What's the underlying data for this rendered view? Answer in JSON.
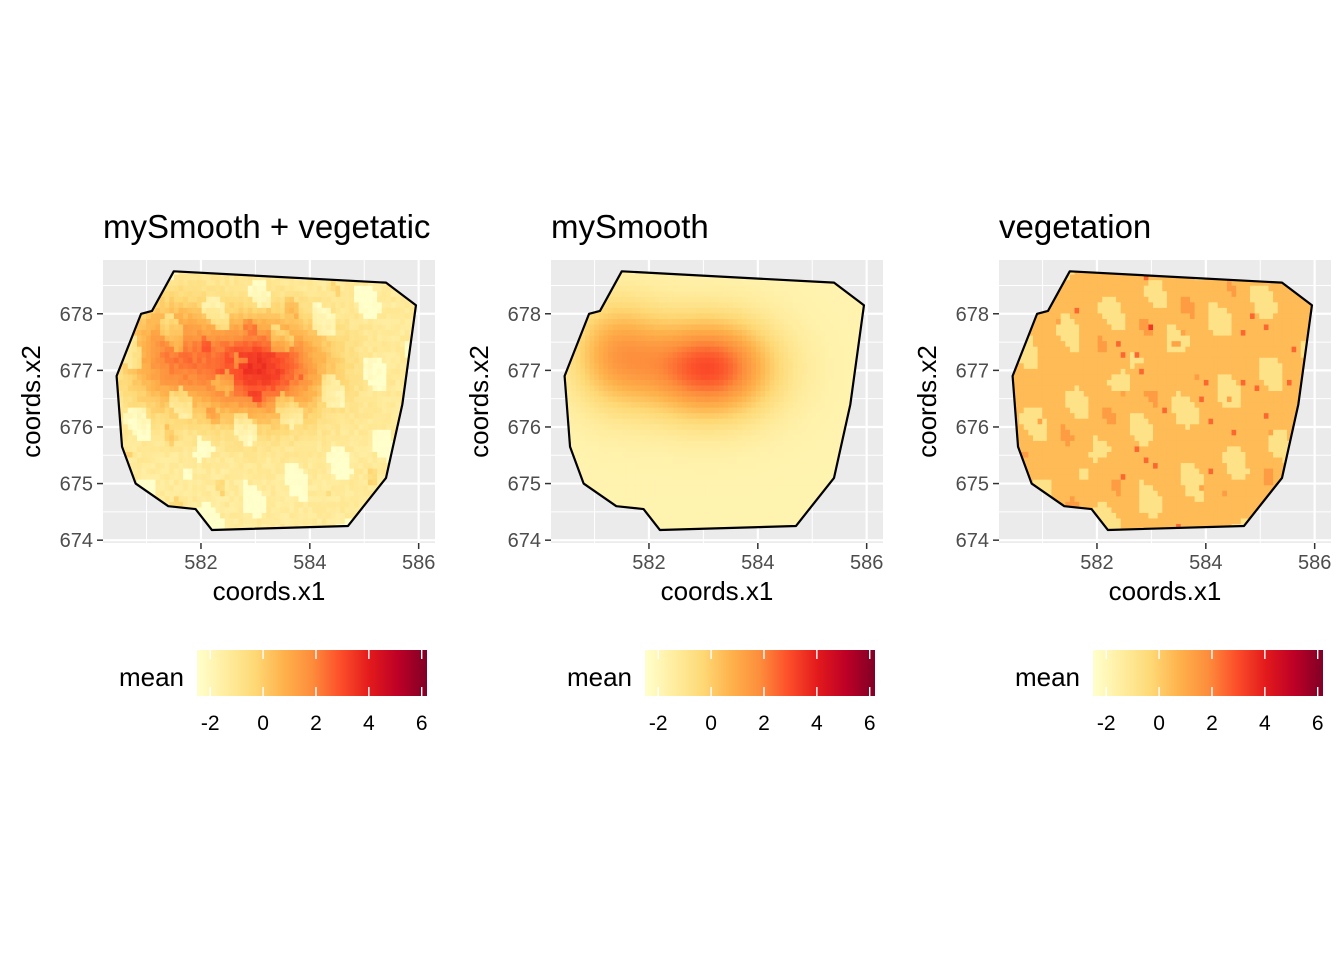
{
  "chart_data": [
    {
      "type": "heatmap",
      "title": "mySmooth + vegetatic",
      "xlabel": "coords.x1",
      "ylabel": "coords.x2",
      "xticks": [
        "582",
        "584",
        "586"
      ],
      "yticks": [
        "674",
        "675",
        "676",
        "677",
        "678"
      ],
      "xlim": [
        580.2,
        586.3
      ],
      "ylim": [
        673.95,
        678.95
      ],
      "grid": true,
      "fill_description": "smooth spatial field plus patchy vegetation effect",
      "legend": {
        "title": "mean",
        "ticks": [
          "-2",
          "0",
          "2",
          "4",
          "6"
        ],
        "range": [
          -2.5,
          6.2
        ],
        "position": "bottom"
      }
    },
    {
      "type": "heatmap",
      "title": "mySmooth",
      "xlabel": "coords.x1",
      "ylabel": "coords.x2",
      "xticks": [
        "582",
        "584",
        "586"
      ],
      "yticks": [
        "674",
        "675",
        "676",
        "677",
        "678"
      ],
      "xlim": [
        580.2,
        586.3
      ],
      "ylim": [
        673.95,
        678.95
      ],
      "grid": true,
      "fill_description": "smooth spatial field",
      "legend": {
        "title": "mean",
        "ticks": [
          "-2",
          "0",
          "2",
          "4",
          "6"
        ],
        "range": [
          -2.5,
          6.2
        ],
        "position": "bottom"
      }
    },
    {
      "type": "heatmap",
      "title": "vegetation",
      "xlabel": "coords.x1",
      "ylabel": "coords.x2",
      "xticks": [
        "582",
        "584",
        "586"
      ],
      "yticks": [
        "674",
        "675",
        "676",
        "677",
        "678"
      ],
      "xlim": [
        580.2,
        586.3
      ],
      "ylim": [
        673.95,
        678.95
      ],
      "grid": true,
      "fill_description": "vegetation effect, mostly near 0.5 with lighter patches",
      "legend": {
        "title": "mean",
        "ticks": [
          "-2",
          "0",
          "2",
          "4",
          "6"
        ],
        "range": [
          -2.5,
          6.2
        ],
        "position": "bottom"
      }
    }
  ],
  "boundary": [
    [
      581.5,
      678.75
    ],
    [
      585.4,
      678.55
    ],
    [
      585.95,
      678.15
    ],
    [
      585.7,
      676.4
    ],
    [
      585.4,
      675.1
    ],
    [
      584.7,
      674.25
    ],
    [
      582.2,
      674.18
    ],
    [
      581.9,
      674.55
    ],
    [
      581.4,
      674.6
    ],
    [
      580.8,
      675.0
    ],
    [
      580.55,
      675.65
    ],
    [
      580.45,
      676.9
    ],
    [
      580.9,
      678.0
    ],
    [
      581.1,
      678.05
    ]
  ],
  "colors": {
    "panel_bg": "#ebebeb",
    "grid": "#ffffff",
    "boundary": "#000000",
    "scale": [
      "#ffffcc",
      "#ffeda0",
      "#fed976",
      "#feb24c",
      "#fd8d3c",
      "#fc4e2a",
      "#e31a1c",
      "#bd0026",
      "#800026"
    ]
  }
}
